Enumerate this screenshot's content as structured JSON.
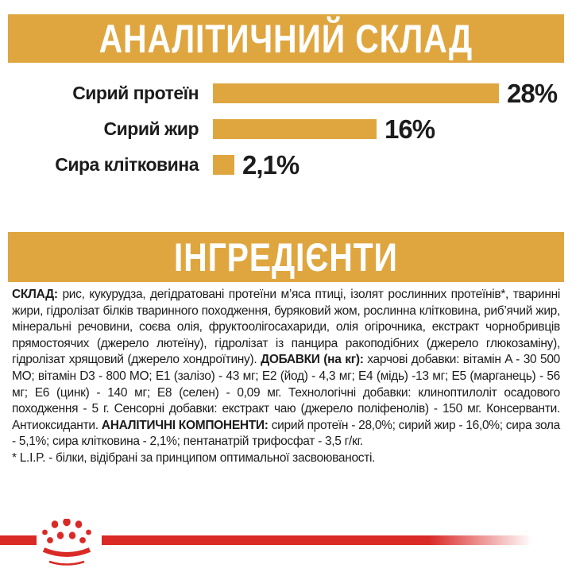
{
  "colors": {
    "gold": "#DFA640",
    "red": "#D92A26",
    "text_dark": "#1c1c1c",
    "banner_text": "#ffffff"
  },
  "header": {
    "title": "АНАЛІТИЧНИЙ СКЛАД"
  },
  "ingredients_header": {
    "title": "ІНГРЕДІЄНТИ"
  },
  "chart_data": {
    "type": "bar",
    "orientation": "horizontal",
    "title": "АНАЛІТИЧНИЙ СКЛАД",
    "categories": [
      "Сирий протеїн",
      "Сирий жир",
      "Сира клітковина"
    ],
    "values": [
      28,
      16,
      2.1
    ],
    "value_labels": [
      "28%",
      "16%",
      "2,1%"
    ],
    "bar_color": "#DFA640",
    "xlim": [
      0,
      28
    ],
    "grid": false,
    "legend": false
  },
  "ingredients": {
    "segments": [
      {
        "text": "СКЛАД: ",
        "bold": true
      },
      {
        "text": "рис, кукурудза, дегідратовані протеїни м’яса птиці, ізолят рослинних протеїнів*, тваринні жири, гідролізат білків тваринного походження, буряковий жом, рослинна клітковина, риб’ячий жир, мінеральні речовини, соєва олія, фруктоолігосахариди, олія огірочника, екстракт чорнобривців прямостоячих (джерело лютеїну), гідролізат із панцира ракоподібних (джерело глюкозаміну), гідролізат хрящовий (джерело хондроїтину). ",
        "bold": false
      },
      {
        "text": "ДОБАВКИ (на кг): ",
        "bold": true
      },
      {
        "text": "харчові добавки: вітамін A - 30 500 МО; вітамін D3 - 800 МО; Е1 (залізо) - 43 мг; Е2 (йод) - 4,3 мг; Е4 (мідь) -13 мг; Е5 (марганець) - 56 мг; Е6 (цинк) - 140 мг; Е8 (селен) - 0,09 мг. Технологічні добавки: клиноптилоліт осадового походження - 5 г. Сенсорні добавки: екстракт чаю (джерело поліфенолів) - 150 мг. Консерванти. Антиоксиданти. ",
        "bold": false
      },
      {
        "text": "АНАЛІТИЧНІ КОМПОНЕНТИ: ",
        "bold": true
      },
      {
        "text": "сирий протеїн - 28,0%; сирий жир - 16,0%; сира зола - 5,1%; сира клітковина - 2,1%; пентанатрій трифосфат - 3,5 г/кг.",
        "bold": false
      }
    ],
    "footnote": "* L.I.P. - білки, відібрані за принципом оптимальної засвоюваності."
  },
  "footer": {
    "logo": "royal-canin-crown"
  }
}
